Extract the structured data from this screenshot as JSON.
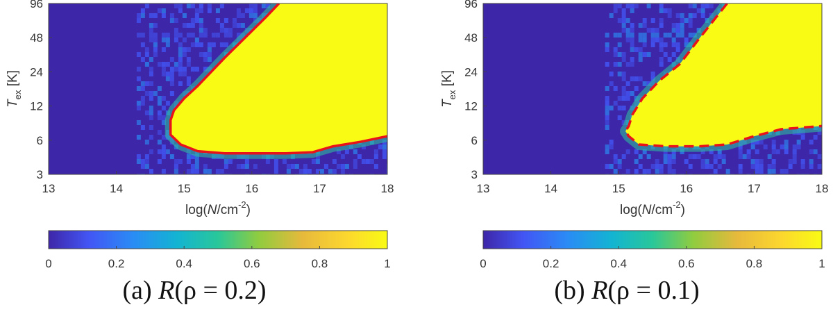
{
  "chart_data": [
    {
      "type": "heatmap",
      "id": "a",
      "caption": {
        "prefix": "(a) ",
        "var": "R",
        "rest": "(ρ = 0.2)"
      },
      "xlabel": {
        "pre": "log(",
        "var": "N",
        "post": "/cm",
        "sup": "-2",
        "close": ")"
      },
      "ylabel": {
        "var": "T",
        "sub": "ex",
        "unit": " [K]"
      },
      "x_ticks": [
        "13",
        "14",
        "15",
        "16",
        "17",
        "18"
      ],
      "y_ticks": [
        "3",
        "6",
        "12",
        "24",
        "48",
        "96"
      ],
      "xlim": [
        13,
        18
      ],
      "ylim_log2": [
        3,
        96
      ],
      "colorbar_ticks": [
        "0",
        "0.2",
        "0.4",
        "0.6",
        "0.8",
        "1"
      ],
      "colorbar_range": [
        0,
        1
      ],
      "background_value": 0,
      "high_region_value": 1,
      "contour_style": "solid",
      "contour_color": "#e8131a",
      "region_boundary": {
        "left": [
          [
            14.8,
            9.0
          ],
          [
            14.85,
            11.0
          ],
          [
            15.0,
            14.0
          ],
          [
            15.2,
            18.0
          ],
          [
            15.4,
            24.0
          ],
          [
            15.6,
            32.0
          ],
          [
            15.9,
            48.0
          ],
          [
            16.2,
            72.0
          ],
          [
            16.4,
            96.0
          ]
        ],
        "bottom": [
          [
            14.8,
            6.7
          ],
          [
            14.95,
            5.5
          ],
          [
            15.2,
            4.8
          ],
          [
            15.6,
            4.6
          ],
          [
            16.0,
            4.6
          ],
          [
            16.5,
            4.6
          ],
          [
            16.9,
            4.7
          ],
          [
            17.2,
            5.3
          ],
          [
            17.6,
            5.8
          ],
          [
            18.0,
            6.5
          ]
        ],
        "nose": [
          14.8,
          7.8
        ]
      }
    },
    {
      "type": "heatmap",
      "id": "b",
      "caption": {
        "prefix": "(b) ",
        "var": "R",
        "rest": "(ρ = 0.1)"
      },
      "xlabel": {
        "pre": "log(",
        "var": "N",
        "post": "/cm",
        "sup": "-2",
        "close": ")"
      },
      "ylabel": {
        "var": "T",
        "sub": "ex",
        "unit": " [K]"
      },
      "x_ticks": [
        "13",
        "14",
        "15",
        "16",
        "17",
        "18"
      ],
      "y_ticks": [
        "3",
        "6",
        "12",
        "24",
        "48",
        "96"
      ],
      "xlim": [
        13,
        18
      ],
      "ylim_log2": [
        3,
        96
      ],
      "colorbar_ticks": [
        "0",
        "0.2",
        "0.4",
        "0.6",
        "0.8",
        "1"
      ],
      "colorbar_range": [
        0,
        1
      ],
      "background_value": 0,
      "high_region_value": 1,
      "contour_style": "dashed",
      "contour_color": "#e8131a",
      "region_boundary": {
        "left": [
          [
            15.15,
            8.0
          ],
          [
            15.2,
            10.0
          ],
          [
            15.35,
            14.0
          ],
          [
            15.6,
            20.0
          ],
          [
            15.9,
            28.0
          ],
          [
            16.2,
            48.0
          ],
          [
            16.6,
            96.0
          ]
        ],
        "bottom": [
          [
            15.15,
            6.5
          ],
          [
            15.3,
            5.5
          ],
          [
            15.7,
            5.3
          ],
          [
            16.2,
            5.3
          ],
          [
            16.6,
            5.5
          ],
          [
            17.0,
            6.5
          ],
          [
            17.4,
            7.5
          ],
          [
            18.0,
            8.0
          ]
        ],
        "nose": [
          15.1,
          7.2
        ]
      }
    }
  ],
  "colormap": [
    "#3e26a8",
    "#4256f5",
    "#2a8cf5",
    "#13b4d2",
    "#29c79a",
    "#90cc3f",
    "#e7b93c",
    "#fcd72e",
    "#f9fb14"
  ]
}
